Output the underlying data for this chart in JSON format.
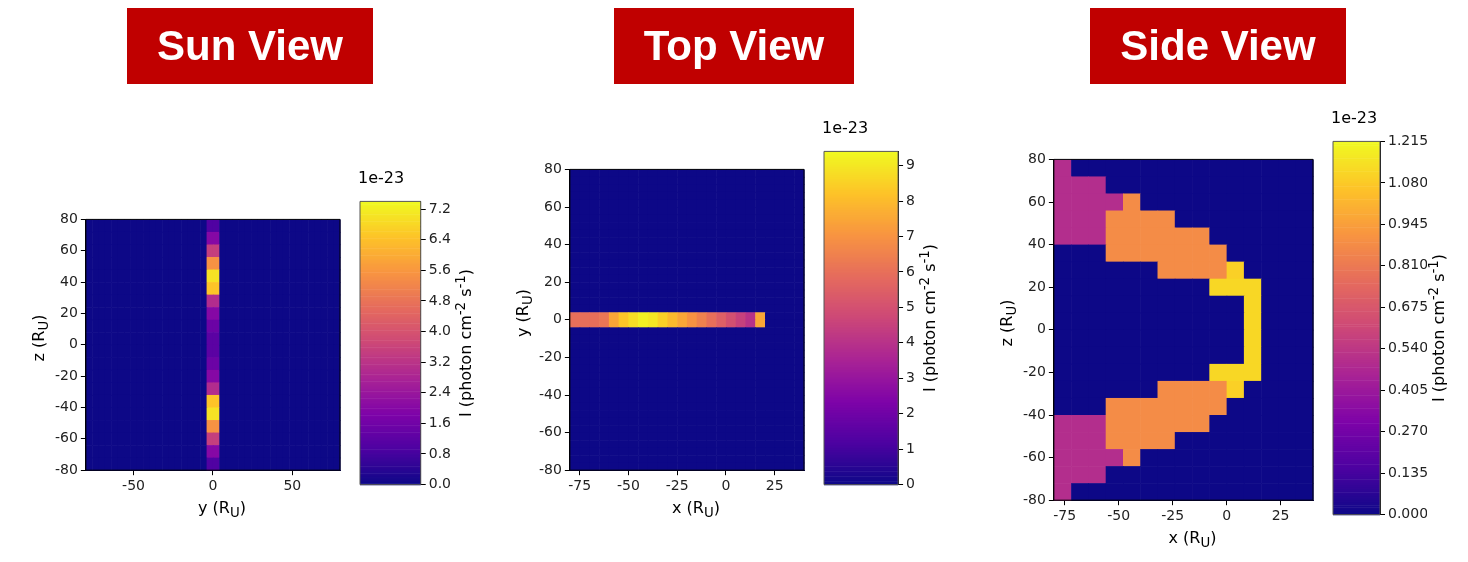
{
  "chart_data": [
    {
      "type": "heatmap",
      "title": "Sun View",
      "xlabel": "y (R$_{U}$)",
      "ylabel": "z (R$_{U}$)",
      "clabel": "I (photon cm$^{-2}$ s$^{-1}$)",
      "annotations": [
        "1e-23"
      ],
      "xlim": [
        -80,
        80
      ],
      "xticks": [
        -50,
        0,
        50
      ],
      "ylim": [
        -80,
        80
      ],
      "yticks": [
        -80,
        -60,
        -40,
        -20,
        0,
        20,
        40,
        60,
        80
      ],
      "clim": [
        0,
        7.4
      ],
      "cticks": [
        {
          "value": 0,
          "label": "0.0"
        },
        0.8,
        1.6,
        2.4,
        3.2,
        {
          "value": 4,
          "label": "4.0"
        },
        4.8,
        5.6,
        6.4,
        7.2
      ],
      "x": [
        -78,
        -74,
        -70,
        -66,
        -62,
        -58,
        -54,
        -50,
        -46,
        -42,
        -38,
        -34,
        -30,
        -26,
        -22,
        -18,
        -14,
        -10,
        -6,
        -2,
        2,
        6,
        10,
        14,
        18,
        22,
        26,
        30,
        34,
        38,
        42,
        46,
        50,
        54,
        58,
        62,
        66,
        70,
        74,
        78
      ],
      "y": [
        76,
        68,
        60,
        52,
        44,
        36,
        28,
        20,
        12,
        4,
        -4,
        -12,
        -20,
        -28,
        -36,
        -44,
        -52,
        -60,
        -68,
        -76
      ],
      "cells": [
        [
          0,
          0,
          0,
          0,
          0,
          0,
          0,
          0,
          0,
          0,
          0,
          0,
          0,
          0,
          0,
          0,
          0,
          0,
          0,
          1.0,
          1.0,
          0,
          0,
          0,
          0,
          0,
          0,
          0,
          0,
          0,
          0,
          0,
          0,
          0,
          0,
          0,
          0,
          0,
          0,
          0
        ],
        [
          0,
          0,
          0,
          0,
          0,
          0,
          0,
          0,
          0,
          0,
          0,
          0,
          0,
          0,
          0,
          0,
          0,
          0,
          0,
          2.0,
          2.0,
          0,
          0,
          0,
          0,
          0,
          0,
          0,
          0,
          0,
          0,
          0,
          0,
          0,
          0,
          0,
          0,
          0,
          0,
          0
        ],
        [
          0,
          0,
          0,
          0,
          0,
          0,
          0,
          0,
          0,
          0,
          0,
          0,
          0,
          0,
          0,
          0,
          0,
          0,
          0,
          3.5,
          3.5,
          0,
          0,
          0,
          0,
          0,
          0,
          0,
          0,
          0,
          0,
          0,
          0,
          0,
          0,
          0,
          0,
          0,
          0,
          0
        ],
        [
          0,
          0,
          0,
          0,
          0,
          0,
          0,
          0,
          0,
          0,
          0,
          0,
          0,
          0,
          0,
          0,
          0,
          0,
          0,
          5.5,
          5.5,
          0,
          0,
          0,
          0,
          0,
          0,
          0,
          0,
          0,
          0,
          0,
          0,
          0,
          0,
          0,
          0,
          0,
          0,
          0
        ],
        [
          0,
          0,
          0,
          0,
          0,
          0,
          0,
          0,
          0,
          0,
          0,
          0,
          0,
          0,
          0,
          0,
          0,
          0,
          0,
          7.0,
          7.0,
          0,
          0,
          0,
          0,
          0,
          0,
          0,
          0,
          0,
          0,
          0,
          0,
          0,
          0,
          0,
          0,
          0,
          0,
          0
        ],
        [
          0,
          0,
          0,
          0,
          0,
          0,
          0,
          0,
          0,
          0,
          0,
          0,
          0,
          0,
          0,
          0,
          0,
          0,
          0,
          6.5,
          6.5,
          0,
          0,
          0,
          0,
          0,
          0,
          0,
          0,
          0,
          0,
          0,
          0,
          0,
          0,
          0,
          0,
          0,
          0,
          0
        ],
        [
          0,
          0,
          0,
          0,
          0,
          0,
          0,
          0,
          0,
          0,
          0,
          0,
          0,
          0,
          0,
          0,
          0,
          0,
          0,
          3.0,
          3.0,
          0,
          0,
          0,
          0,
          0,
          0,
          0,
          0,
          0,
          0,
          0,
          0,
          0,
          0,
          0,
          0,
          0,
          0,
          0
        ],
        [
          0,
          0,
          0,
          0,
          0,
          0,
          0,
          0,
          0,
          0,
          0,
          0,
          0,
          0,
          0,
          0,
          0,
          0,
          0,
          2.0,
          2.0,
          0,
          0,
          0,
          0,
          0,
          0,
          0,
          0,
          0,
          0,
          0,
          0,
          0,
          0,
          0,
          0,
          0,
          0,
          0
        ],
        [
          0,
          0,
          0,
          0,
          0,
          0,
          0,
          0,
          0,
          0,
          0,
          0,
          0,
          0,
          0,
          0,
          0,
          0,
          0,
          1.5,
          1.5,
          0,
          0,
          0,
          0,
          0,
          0,
          0,
          0,
          0,
          0,
          0,
          0,
          0,
          0,
          0,
          0,
          0,
          0,
          0
        ],
        [
          0,
          0,
          0,
          0,
          0,
          0,
          0,
          0,
          0,
          0,
          0,
          0,
          0,
          0,
          0,
          0,
          0,
          0,
          0,
          1.2,
          1.2,
          0,
          0,
          0,
          0,
          0,
          0,
          0,
          0,
          0,
          0,
          0,
          0,
          0,
          0,
          0,
          0,
          0,
          0,
          0
        ],
        [
          0,
          0,
          0,
          0,
          0,
          0,
          0,
          0,
          0,
          0,
          0,
          0,
          0,
          0,
          0,
          0,
          0,
          0,
          0,
          1.2,
          1.2,
          0,
          0,
          0,
          0,
          0,
          0,
          0,
          0,
          0,
          0,
          0,
          0,
          0,
          0,
          0,
          0,
          0,
          0,
          0
        ],
        [
          0,
          0,
          0,
          0,
          0,
          0,
          0,
          0,
          0,
          0,
          0,
          0,
          0,
          0,
          0,
          0,
          0,
          0,
          0,
          1.5,
          1.5,
          0,
          0,
          0,
          0,
          0,
          0,
          0,
          0,
          0,
          0,
          0,
          0,
          0,
          0,
          0,
          0,
          0,
          0,
          0
        ],
        [
          0,
          0,
          0,
          0,
          0,
          0,
          0,
          0,
          0,
          0,
          0,
          0,
          0,
          0,
          0,
          0,
          0,
          0,
          0,
          2.0,
          2.0,
          0,
          0,
          0,
          0,
          0,
          0,
          0,
          0,
          0,
          0,
          0,
          0,
          0,
          0,
          0,
          0,
          0,
          0,
          0
        ],
        [
          0,
          0,
          0,
          0,
          0,
          0,
          0,
          0,
          0,
          0,
          0,
          0,
          0,
          0,
          0,
          0,
          0,
          0,
          0,
          3.0,
          3.0,
          0,
          0,
          0,
          0,
          0,
          0,
          0,
          0,
          0,
          0,
          0,
          0,
          0,
          0,
          0,
          0,
          0,
          0,
          0
        ],
        [
          0,
          0,
          0,
          0,
          0,
          0,
          0,
          0,
          0,
          0,
          0,
          0,
          0,
          0,
          0,
          0,
          0,
          0,
          0,
          6.5,
          6.5,
          0,
          0,
          0,
          0,
          0,
          0,
          0,
          0,
          0,
          0,
          0,
          0,
          0,
          0,
          0,
          0,
          0,
          0,
          0
        ],
        [
          0,
          0,
          0,
          0,
          0,
          0,
          0,
          0,
          0,
          0,
          0,
          0,
          0,
          0,
          0,
          0,
          0,
          0,
          0,
          7.0,
          7.0,
          0,
          0,
          0,
          0,
          0,
          0,
          0,
          0,
          0,
          0,
          0,
          0,
          0,
          0,
          0,
          0,
          0,
          0,
          0
        ],
        [
          0,
          0,
          0,
          0,
          0,
          0,
          0,
          0,
          0,
          0,
          0,
          0,
          0,
          0,
          0,
          0,
          0,
          0,
          0,
          5.5,
          5.5,
          0,
          0,
          0,
          0,
          0,
          0,
          0,
          0,
          0,
          0,
          0,
          0,
          0,
          0,
          0,
          0,
          0,
          0,
          0
        ],
        [
          0,
          0,
          0,
          0,
          0,
          0,
          0,
          0,
          0,
          0,
          0,
          0,
          0,
          0,
          0,
          0,
          0,
          0,
          0,
          3.5,
          3.5,
          0,
          0,
          0,
          0,
          0,
          0,
          0,
          0,
          0,
          0,
          0,
          0,
          0,
          0,
          0,
          0,
          0,
          0,
          0
        ],
        [
          0,
          0,
          0,
          0,
          0,
          0,
          0,
          0,
          0,
          0,
          0,
          0,
          0,
          0,
          0,
          0,
          0,
          0,
          0,
          2.0,
          2.0,
          0,
          0,
          0,
          0,
          0,
          0,
          0,
          0,
          0,
          0,
          0,
          0,
          0,
          0,
          0,
          0,
          0,
          0,
          0
        ],
        [
          0,
          0,
          0,
          0,
          0,
          0,
          0,
          0,
          0,
          0,
          0,
          0,
          0,
          0,
          0,
          0,
          0,
          0,
          0,
          1.0,
          1.0,
          0,
          0,
          0,
          0,
          0,
          0,
          0,
          0,
          0,
          0,
          0,
          0,
          0,
          0,
          0,
          0,
          0,
          0,
          0
        ]
      ]
    },
    {
      "type": "heatmap",
      "title": "Top View",
      "xlabel": "x (R$_{U}$)",
      "ylabel": "y (R$_{U}$)",
      "clabel": "I (photon cm$^{-2}$ s$^{-1}$)",
      "annotations": [
        "1e-23"
      ],
      "xlim": [
        -80,
        40
      ],
      "xticks": [
        -75,
        -50,
        -25,
        0,
        25
      ],
      "ylim": [
        -80,
        80
      ],
      "yticks": [
        -80,
        -60,
        -40,
        -20,
        0,
        20,
        40,
        60,
        80
      ],
      "clim": [
        0,
        9.4
      ],
      "cticks": [
        0,
        1,
        2,
        3,
        4,
        5,
        6,
        7,
        8,
        9
      ],
      "x": [
        -77.5,
        -72.5,
        -67.5,
        -62.5,
        -57.5,
        -52.5,
        -47.5,
        -42.5,
        -37.5,
        -32.5,
        -27.5,
        -22.5,
        -17.5,
        -12.5,
        -7.5,
        -2.5,
        2.5,
        7.5,
        12.5,
        17.5,
        22.5,
        27.5,
        32.5,
        37.5
      ],
      "y": [
        78,
        74,
        70,
        66,
        62,
        58,
        54,
        50,
        46,
        42,
        38,
        34,
        30,
        26,
        22,
        18,
        14,
        10,
        6,
        2,
        -2,
        -6,
        -10,
        -14,
        -18,
        -22,
        -26,
        -30,
        -34,
        -38,
        -42,
        -46,
        -50,
        -54,
        -58,
        -62,
        -66,
        -70,
        -74,
        -78
      ],
      "cells": [
        [
          0,
          0,
          0,
          0,
          0,
          0,
          0,
          0,
          0,
          0,
          0,
          0,
          0,
          0,
          0,
          0,
          0,
          0,
          0,
          0,
          0,
          0,
          0,
          0
        ],
        [
          0,
          0,
          0,
          0,
          0,
          0,
          0,
          0,
          0,
          0,
          0,
          0,
          0,
          0,
          0,
          0,
          0,
          0,
          0,
          0,
          0,
          0,
          0,
          0
        ],
        [
          0,
          0,
          0,
          0,
          0,
          0,
          0,
          0,
          0,
          0,
          0,
          0,
          0,
          0,
          0,
          0,
          0,
          0,
          0,
          0,
          0,
          0,
          0,
          0
        ],
        [
          0,
          0,
          0,
          0,
          0,
          0,
          0,
          0,
          0,
          0,
          0,
          0,
          0,
          0,
          0,
          0,
          0,
          0,
          0,
          0,
          0,
          0,
          0,
          0
        ],
        [
          0,
          0,
          0,
          0,
          0,
          0,
          0,
          0,
          0,
          0,
          0,
          0,
          0,
          0,
          0,
          0,
          0,
          0,
          0,
          0,
          0,
          0,
          0,
          0
        ],
        [
          0,
          0,
          0,
          0,
          0,
          0,
          0,
          0,
          0,
          0,
          0,
          0,
          0,
          0,
          0,
          0,
          0,
          0,
          0,
          0,
          0,
          0,
          0,
          0
        ],
        [
          0,
          0,
          0,
          0,
          0,
          0,
          0,
          0,
          0,
          0,
          0,
          0,
          0,
          0,
          0,
          0,
          0,
          0,
          0,
          0,
          0,
          0,
          0,
          0
        ],
        [
          0,
          0,
          0,
          0,
          0,
          0,
          0,
          0,
          0,
          0,
          0,
          0,
          0,
          0,
          0,
          0,
          0,
          0,
          0,
          0,
          0,
          0,
          0,
          0
        ],
        [
          0,
          0,
          0,
          0,
          0,
          0,
          0,
          0,
          0,
          0,
          0,
          0,
          0,
          0,
          0,
          0,
          0,
          0,
          0,
          0,
          0,
          0,
          0,
          0
        ],
        [
          0,
          0,
          0,
          0,
          0,
          0,
          0,
          0,
          0,
          0,
          0,
          0,
          0,
          0,
          0,
          0,
          0,
          0,
          0,
          0,
          0,
          0,
          0,
          0
        ],
        [
          0,
          0,
          0,
          0,
          0,
          0,
          0,
          0,
          0,
          0,
          0,
          0,
          0,
          0,
          0,
          0,
          0,
          0,
          0,
          0,
          0,
          0,
          0,
          0
        ],
        [
          0,
          0,
          0,
          0,
          0,
          0,
          0,
          0,
          0,
          0,
          0,
          0,
          0,
          0,
          0,
          0,
          0,
          0,
          0,
          0,
          0,
          0,
          0,
          0
        ],
        [
          0,
          0,
          0,
          0,
          0,
          0,
          0,
          0,
          0,
          0,
          0,
          0,
          0,
          0,
          0,
          0,
          0,
          0,
          0,
          0,
          0,
          0,
          0,
          0
        ],
        [
          0,
          0,
          0,
          0,
          0,
          0,
          0,
          0,
          0,
          0,
          0,
          0,
          0,
          0,
          0,
          0,
          0,
          0,
          0,
          0,
          0,
          0,
          0,
          0
        ],
        [
          0,
          0,
          0,
          0,
          0,
          0,
          0,
          0,
          0,
          0,
          0,
          0,
          0,
          0,
          0,
          0,
          0,
          0,
          0,
          0,
          0,
          0,
          0,
          0
        ],
        [
          0,
          0,
          0,
          0,
          0,
          0,
          0,
          0,
          0,
          0,
          0,
          0,
          0,
          0,
          0,
          0,
          0,
          0,
          0,
          0,
          0,
          0,
          0,
          0
        ],
        [
          0,
          0,
          0,
          0,
          0,
          0,
          0,
          0,
          0,
          0,
          0,
          0,
          0,
          0,
          0,
          0,
          0,
          0,
          0,
          0,
          0,
          0,
          0,
          0
        ],
        [
          0,
          0,
          0,
          0,
          0,
          0,
          0,
          0,
          0,
          0,
          0,
          0,
          0,
          0,
          0,
          0,
          0,
          0,
          0,
          0,
          0,
          0,
          0,
          0
        ],
        [
          0,
          0,
          0,
          0,
          0,
          0,
          0,
          0,
          0,
          0,
          0,
          0,
          0,
          0,
          0,
          0,
          0,
          0,
          0,
          0,
          0,
          0,
          0,
          0
        ],
        [
          6.0,
          6.0,
          6.0,
          6.2,
          7.5,
          8.3,
          8.8,
          9.2,
          9.0,
          8.5,
          8.0,
          7.5,
          7.0,
          6.5,
          6.0,
          5.5,
          5.0,
          4.5,
          4.0,
          7.5,
          0,
          0,
          0,
          0
        ],
        [
          6.0,
          6.0,
          6.0,
          6.2,
          7.5,
          8.3,
          8.8,
          9.2,
          9.0,
          8.5,
          8.0,
          7.5,
          7.0,
          6.5,
          6.0,
          5.5,
          5.0,
          4.5,
          4.0,
          7.5,
          0,
          0,
          0,
          0
        ],
        [
          0,
          0,
          0,
          0,
          0,
          0,
          0,
          0,
          0,
          0,
          0,
          0,
          0,
          0,
          0,
          0,
          0,
          0,
          0,
          0,
          0,
          0,
          0,
          0
        ],
        [
          0,
          0,
          0,
          0,
          0,
          0,
          0,
          0,
          0,
          0,
          0,
          0,
          0,
          0,
          0,
          0,
          0,
          0,
          0,
          0,
          0,
          0,
          0,
          0
        ],
        [
          0,
          0,
          0,
          0,
          0,
          0,
          0,
          0,
          0,
          0,
          0,
          0,
          0,
          0,
          0,
          0,
          0,
          0,
          0,
          0,
          0,
          0,
          0,
          0
        ],
        [
          0,
          0,
          0,
          0,
          0,
          0,
          0,
          0,
          0,
          0,
          0,
          0,
          0,
          0,
          0,
          0,
          0,
          0,
          0,
          0,
          0,
          0,
          0,
          0
        ],
        [
          0,
          0,
          0,
          0,
          0,
          0,
          0,
          0,
          0,
          0,
          0,
          0,
          0,
          0,
          0,
          0,
          0,
          0,
          0,
          0,
          0,
          0,
          0,
          0
        ],
        [
          0,
          0,
          0,
          0,
          0,
          0,
          0,
          0,
          0,
          0,
          0,
          0,
          0,
          0,
          0,
          0,
          0,
          0,
          0,
          0,
          0,
          0,
          0,
          0
        ],
        [
          0,
          0,
          0,
          0,
          0,
          0,
          0,
          0,
          0,
          0,
          0,
          0,
          0,
          0,
          0,
          0,
          0,
          0,
          0,
          0,
          0,
          0,
          0,
          0
        ],
        [
          0,
          0,
          0,
          0,
          0,
          0,
          0,
          0,
          0,
          0,
          0,
          0,
          0,
          0,
          0,
          0,
          0,
          0,
          0,
          0,
          0,
          0,
          0,
          0
        ],
        [
          0,
          0,
          0,
          0,
          0,
          0,
          0,
          0,
          0,
          0,
          0,
          0,
          0,
          0,
          0,
          0,
          0,
          0,
          0,
          0,
          0,
          0,
          0,
          0
        ],
        [
          0,
          0,
          0,
          0,
          0,
          0,
          0,
          0,
          0,
          0,
          0,
          0,
          0,
          0,
          0,
          0,
          0,
          0,
          0,
          0,
          0,
          0,
          0,
          0
        ],
        [
          0,
          0,
          0,
          0,
          0,
          0,
          0,
          0,
          0,
          0,
          0,
          0,
          0,
          0,
          0,
          0,
          0,
          0,
          0,
          0,
          0,
          0,
          0,
          0
        ],
        [
          0,
          0,
          0,
          0,
          0,
          0,
          0,
          0,
          0,
          0,
          0,
          0,
          0,
          0,
          0,
          0,
          0,
          0,
          0,
          0,
          0,
          0,
          0,
          0
        ],
        [
          0,
          0,
          0,
          0,
          0,
          0,
          0,
          0,
          0,
          0,
          0,
          0,
          0,
          0,
          0,
          0,
          0,
          0,
          0,
          0,
          0,
          0,
          0,
          0
        ],
        [
          0,
          0,
          0,
          0,
          0,
          0,
          0,
          0,
          0,
          0,
          0,
          0,
          0,
          0,
          0,
          0,
          0,
          0,
          0,
          0,
          0,
          0,
          0,
          0
        ],
        [
          0,
          0,
          0,
          0,
          0,
          0,
          0,
          0,
          0,
          0,
          0,
          0,
          0,
          0,
          0,
          0,
          0,
          0,
          0,
          0,
          0,
          0,
          0,
          0
        ],
        [
          0,
          0,
          0,
          0,
          0,
          0,
          0,
          0,
          0,
          0,
          0,
          0,
          0,
          0,
          0,
          0,
          0,
          0,
          0,
          0,
          0,
          0,
          0,
          0
        ],
        [
          0,
          0,
          0,
          0,
          0,
          0,
          0,
          0,
          0,
          0,
          0,
          0,
          0,
          0,
          0,
          0,
          0,
          0,
          0,
          0,
          0,
          0,
          0,
          0
        ],
        [
          0,
          0,
          0,
          0,
          0,
          0,
          0,
          0,
          0,
          0,
          0,
          0,
          0,
          0,
          0,
          0,
          0,
          0,
          0,
          0,
          0,
          0,
          0,
          0
        ],
        [
          0,
          0,
          0,
          0,
          0,
          0,
          0,
          0,
          0,
          0,
          0,
          0,
          0,
          0,
          0,
          0,
          0,
          0,
          0,
          0,
          0,
          0,
          0,
          0
        ]
      ]
    },
    {
      "type": "heatmap",
      "title": "Side View",
      "xlabel": "x (R$_{U}$)",
      "ylabel": "z (R$_{U}$)",
      "clabel": "I (photon cm$^{-2}$ s$^{-1}$)",
      "annotations": [
        "1e-23"
      ],
      "xlim": [
        -80,
        40
      ],
      "xticks": [
        -75,
        -50,
        -25,
        0,
        25
      ],
      "ylim": [
        -80,
        80
      ],
      "yticks": [
        -80,
        -60,
        -40,
        -20,
        0,
        20,
        40,
        60,
        80
      ],
      "clim": [
        0,
        1.215
      ],
      "cticks": [
        {
          "value": 0,
          "label": "0.000"
        },
        0.135,
        {
          "value": 0.27,
          "label": "0.270"
        },
        0.405,
        {
          "value": 0.54,
          "label": "0.540"
        },
        0.675,
        {
          "value": 0.81,
          "label": "0.810"
        },
        0.945,
        {
          "value": 1.08,
          "label": "1.080"
        },
        1.215
      ],
      "x": [
        -76,
        -68,
        -60,
        -52,
        -44,
        -36,
        -28,
        -20,
        -12,
        -4,
        4,
        12,
        20,
        28,
        36
      ],
      "y": [
        76,
        68,
        60,
        52,
        44,
        36,
        28,
        20,
        12,
        4,
        -4,
        -12,
        -20,
        -28,
        -36,
        -44,
        -52,
        -60,
        -68,
        -76
      ],
      "cells": [
        [
          0.5,
          0,
          0,
          0,
          0,
          0,
          0,
          0,
          0,
          0,
          0,
          0,
          0,
          0,
          0
        ],
        [
          0.5,
          0.5,
          0.5,
          0,
          0,
          0,
          0,
          0,
          0,
          0,
          0,
          0,
          0,
          0,
          0
        ],
        [
          0.5,
          0.5,
          0.5,
          0.5,
          0.88,
          0,
          0,
          0,
          0,
          0,
          0,
          0,
          0,
          0,
          0
        ],
        [
          0.5,
          0.5,
          0.5,
          0.88,
          0.88,
          0.88,
          0.88,
          0,
          0,
          0,
          0,
          0,
          0,
          0,
          0
        ],
        [
          0.5,
          0.5,
          0.5,
          0.88,
          0.88,
          0.88,
          0.88,
          0.88,
          0.88,
          0,
          0,
          0,
          0,
          0,
          0
        ],
        [
          0,
          0,
          0,
          0.88,
          0.88,
          0.88,
          0.88,
          0.88,
          0.88,
          0.88,
          0,
          0,
          0,
          0,
          0
        ],
        [
          0,
          0,
          0,
          0,
          0,
          0,
          0.88,
          0.88,
          0.88,
          0.88,
          1.1,
          0,
          0,
          0,
          0
        ],
        [
          0,
          0,
          0,
          0,
          0,
          0,
          0,
          0,
          0,
          1.12,
          1.12,
          1.12,
          0,
          0,
          0
        ],
        [
          0,
          0,
          0,
          0,
          0,
          0,
          0,
          0,
          0,
          0,
          0,
          1.12,
          0,
          0,
          0
        ],
        [
          0,
          0,
          0,
          0,
          0,
          0,
          0,
          0,
          0,
          0,
          0,
          1.12,
          0,
          0,
          0
        ],
        [
          0,
          0,
          0,
          0,
          0,
          0,
          0,
          0,
          0,
          0,
          0,
          1.12,
          0,
          0,
          0
        ],
        [
          0,
          0,
          0,
          0,
          0,
          0,
          0,
          0,
          0,
          0,
          0,
          1.12,
          0,
          0,
          0
        ],
        [
          0,
          0,
          0,
          0,
          0,
          0,
          0,
          0,
          0,
          1.12,
          1.12,
          1.12,
          0,
          0,
          0
        ],
        [
          0,
          0,
          0,
          0,
          0,
          0,
          0.88,
          0.88,
          0.88,
          0.88,
          1.1,
          0,
          0,
          0,
          0
        ],
        [
          0,
          0,
          0,
          0.88,
          0.88,
          0.88,
          0.88,
          0.88,
          0.88,
          0.88,
          0,
          0,
          0,
          0,
          0
        ],
        [
          0.5,
          0.5,
          0.5,
          0.88,
          0.88,
          0.88,
          0.88,
          0.88,
          0.88,
          0,
          0,
          0,
          0,
          0,
          0
        ],
        [
          0.5,
          0.5,
          0.5,
          0.88,
          0.88,
          0.88,
          0.88,
          0,
          0,
          0,
          0,
          0,
          0,
          0,
          0
        ],
        [
          0.5,
          0.5,
          0.5,
          0.5,
          0.88,
          0,
          0,
          0,
          0,
          0,
          0,
          0,
          0,
          0,
          0
        ],
        [
          0.5,
          0.5,
          0.5,
          0,
          0,
          0,
          0,
          0,
          0,
          0,
          0,
          0,
          0,
          0,
          0
        ],
        [
          0.5,
          0,
          0,
          0,
          0,
          0,
          0,
          0,
          0,
          0,
          0,
          0,
          0,
          0,
          0
        ]
      ]
    }
  ]
}
